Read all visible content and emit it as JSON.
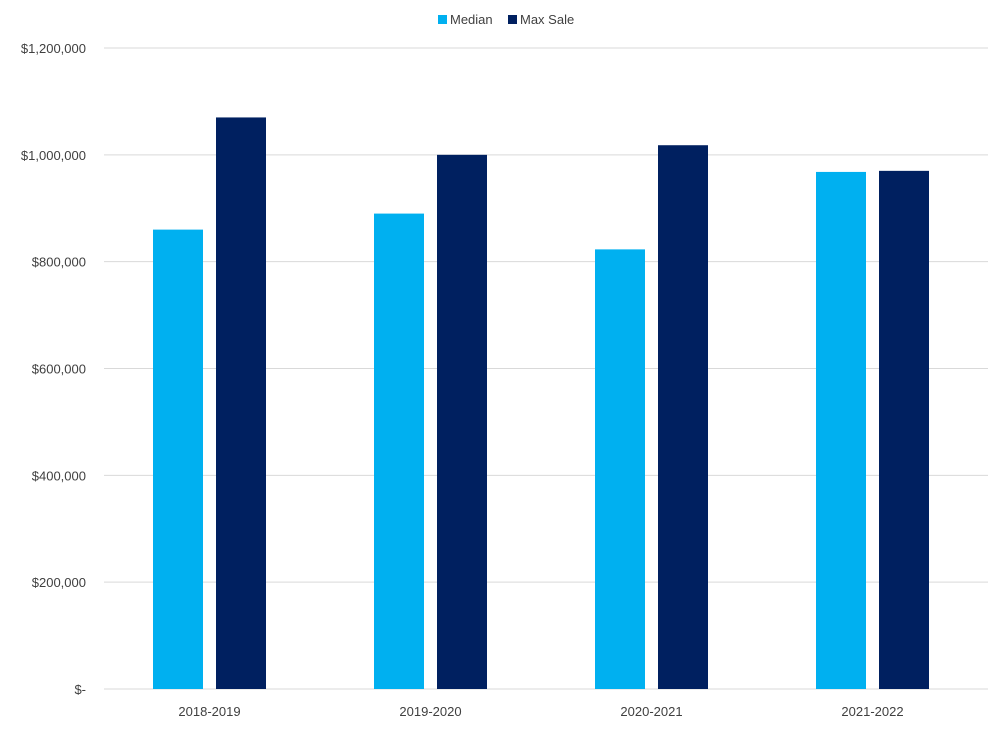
{
  "chart_data": {
    "type": "bar",
    "title": "",
    "xlabel": "",
    "ylabel": "",
    "categories": [
      "2018-2019",
      "2019-2020",
      "2020-2021",
      "2021-2022"
    ],
    "series": [
      {
        "name": "Median",
        "color": "#00B0F0",
        "values": [
          860000,
          890000,
          823000,
          968000
        ]
      },
      {
        "name": "Max Sale",
        "color": "#002060",
        "values": [
          1070000,
          1000000,
          1018000,
          970000
        ]
      }
    ],
    "ylim": [
      0,
      1200000
    ],
    "yticks": [
      0,
      200000,
      400000,
      600000,
      800000,
      1000000,
      1200000
    ],
    "ytick_labels": [
      "$-",
      "$200,000",
      "$400,000",
      "$600,000",
      "$800,000",
      "$1,000,000",
      "$1,200,000"
    ],
    "grid": true,
    "legend_position": "top-center",
    "gridline_color": "#D9D9D9"
  }
}
